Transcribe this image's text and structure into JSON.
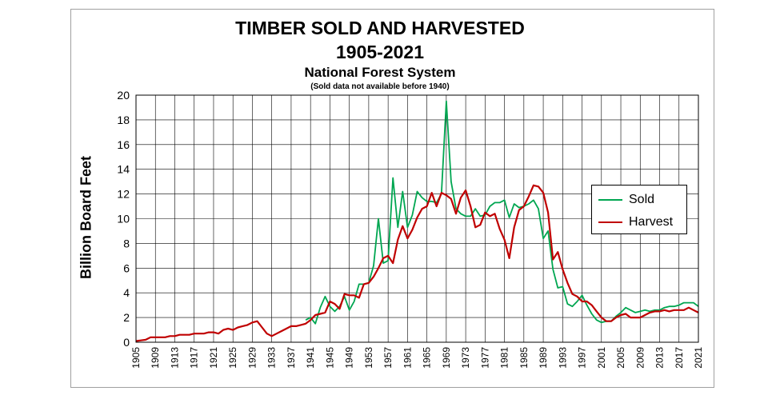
{
  "chart_data": {
    "type": "line",
    "title": "TIMBER SOLD AND HARVESTED",
    "title_line2": "1905-2021",
    "subtitle": "National Forest System",
    "note": "(Sold data not available before 1940)",
    "xlabel": "",
    "ylabel": "Billion Board Feet",
    "xlim": [
      1905,
      2021
    ],
    "ylim": [
      0,
      20
    ],
    "yticks": [
      0,
      2,
      4,
      6,
      8,
      10,
      12,
      14,
      16,
      18,
      20
    ],
    "xticks": [
      1905,
      1909,
      1913,
      1917,
      1921,
      1925,
      1929,
      1933,
      1937,
      1941,
      1945,
      1949,
      1953,
      1957,
      1961,
      1965,
      1969,
      1973,
      1977,
      1981,
      1985,
      1989,
      1993,
      1997,
      2001,
      2005,
      2009,
      2013,
      2017,
      2021
    ],
    "grid": true,
    "legend_position": "right",
    "series": [
      {
        "name": "Sold",
        "color": "#00a651",
        "points": [
          [
            1940,
            1.8
          ],
          [
            1941,
            2.0
          ],
          [
            1942,
            1.5
          ],
          [
            1943,
            2.8
          ],
          [
            1944,
            3.7
          ],
          [
            1945,
            2.9
          ],
          [
            1946,
            2.5
          ],
          [
            1947,
            2.9
          ],
          [
            1948,
            3.7
          ],
          [
            1949,
            2.6
          ],
          [
            1950,
            3.3
          ],
          [
            1951,
            4.7
          ],
          [
            1952,
            4.7
          ],
          [
            1953,
            4.8
          ],
          [
            1954,
            6.2
          ],
          [
            1955,
            10.0
          ],
          [
            1956,
            6.4
          ],
          [
            1957,
            6.6
          ],
          [
            1958,
            13.3
          ],
          [
            1959,
            9.3
          ],
          [
            1960,
            12.2
          ],
          [
            1961,
            9.3
          ],
          [
            1962,
            10.3
          ],
          [
            1963,
            12.2
          ],
          [
            1964,
            11.7
          ],
          [
            1965,
            11.4
          ],
          [
            1966,
            11.4
          ],
          [
            1967,
            11.3
          ],
          [
            1968,
            12.0
          ],
          [
            1969,
            19.5
          ],
          [
            1970,
            13.0
          ],
          [
            1971,
            10.8
          ],
          [
            1972,
            10.4
          ],
          [
            1973,
            10.2
          ],
          [
            1974,
            10.2
          ],
          [
            1975,
            10.8
          ],
          [
            1976,
            10.2
          ],
          [
            1977,
            10.3
          ],
          [
            1978,
            11.0
          ],
          [
            1979,
            11.3
          ],
          [
            1980,
            11.3
          ],
          [
            1981,
            11.5
          ],
          [
            1982,
            10.1
          ],
          [
            1983,
            11.2
          ],
          [
            1984,
            10.9
          ],
          [
            1985,
            11.0
          ],
          [
            1986,
            11.2
          ],
          [
            1987,
            11.5
          ],
          [
            1988,
            10.8
          ],
          [
            1989,
            8.4
          ],
          [
            1990,
            9.0
          ],
          [
            1991,
            5.9
          ],
          [
            1992,
            4.4
          ],
          [
            1993,
            4.5
          ],
          [
            1994,
            3.1
          ],
          [
            1995,
            2.9
          ],
          [
            1996,
            3.3
          ],
          [
            1997,
            3.8
          ],
          [
            1998,
            3.0
          ],
          [
            1999,
            2.3
          ],
          [
            2000,
            1.8
          ],
          [
            2001,
            1.6
          ],
          [
            2002,
            1.7
          ],
          [
            2003,
            1.7
          ],
          [
            2004,
            2.1
          ],
          [
            2005,
            2.4
          ],
          [
            2006,
            2.8
          ],
          [
            2007,
            2.6
          ],
          [
            2008,
            2.4
          ],
          [
            2009,
            2.5
          ],
          [
            2010,
            2.6
          ],
          [
            2011,
            2.5
          ],
          [
            2012,
            2.6
          ],
          [
            2013,
            2.6
          ],
          [
            2014,
            2.8
          ],
          [
            2015,
            2.9
          ],
          [
            2016,
            2.9
          ],
          [
            2017,
            3.0
          ],
          [
            2018,
            3.2
          ],
          [
            2019,
            3.2
          ],
          [
            2020,
            3.2
          ],
          [
            2021,
            2.9
          ]
        ]
      },
      {
        "name": "Harvest",
        "color": "#c00000",
        "points": [
          [
            1905,
            0.1
          ],
          [
            1906,
            0.15
          ],
          [
            1907,
            0.2
          ],
          [
            1908,
            0.4
          ],
          [
            1909,
            0.4
          ],
          [
            1910,
            0.4
          ],
          [
            1911,
            0.4
          ],
          [
            1912,
            0.5
          ],
          [
            1913,
            0.5
          ],
          [
            1914,
            0.6
          ],
          [
            1915,
            0.6
          ],
          [
            1916,
            0.6
          ],
          [
            1917,
            0.7
          ],
          [
            1918,
            0.7
          ],
          [
            1919,
            0.7
          ],
          [
            1920,
            0.8
          ],
          [
            1921,
            0.8
          ],
          [
            1922,
            0.7
          ],
          [
            1923,
            1.0
          ],
          [
            1924,
            1.1
          ],
          [
            1925,
            1.0
          ],
          [
            1926,
            1.2
          ],
          [
            1927,
            1.3
          ],
          [
            1928,
            1.4
          ],
          [
            1929,
            1.6
          ],
          [
            1930,
            1.7
          ],
          [
            1931,
            1.2
          ],
          [
            1932,
            0.7
          ],
          [
            1933,
            0.5
          ],
          [
            1934,
            0.7
          ],
          [
            1935,
            0.9
          ],
          [
            1936,
            1.1
          ],
          [
            1937,
            1.3
          ],
          [
            1938,
            1.3
          ],
          [
            1939,
            1.4
          ],
          [
            1940,
            1.5
          ],
          [
            1941,
            1.8
          ],
          [
            1942,
            2.2
          ],
          [
            1943,
            2.3
          ],
          [
            1944,
            2.4
          ],
          [
            1945,
            3.3
          ],
          [
            1946,
            3.1
          ],
          [
            1947,
            2.7
          ],
          [
            1948,
            3.9
          ],
          [
            1949,
            3.8
          ],
          [
            1950,
            3.8
          ],
          [
            1951,
            3.6
          ],
          [
            1952,
            4.7
          ],
          [
            1953,
            4.8
          ],
          [
            1954,
            5.3
          ],
          [
            1955,
            6.0
          ],
          [
            1956,
            6.8
          ],
          [
            1957,
            7.0
          ],
          [
            1958,
            6.4
          ],
          [
            1959,
            8.3
          ],
          [
            1960,
            9.4
          ],
          [
            1961,
            8.4
          ],
          [
            1962,
            9.1
          ],
          [
            1963,
            10.1
          ],
          [
            1964,
            10.8
          ],
          [
            1965,
            11.0
          ],
          [
            1966,
            12.1
          ],
          [
            1967,
            11.0
          ],
          [
            1968,
            12.1
          ],
          [
            1969,
            11.9
          ],
          [
            1970,
            11.6
          ],
          [
            1971,
            10.4
          ],
          [
            1972,
            11.7
          ],
          [
            1973,
            12.3
          ],
          [
            1974,
            11.0
          ],
          [
            1975,
            9.3
          ],
          [
            1976,
            9.5
          ],
          [
            1977,
            10.5
          ],
          [
            1978,
            10.2
          ],
          [
            1979,
            10.4
          ],
          [
            1980,
            9.2
          ],
          [
            1981,
            8.3
          ],
          [
            1982,
            6.8
          ],
          [
            1983,
            9.3
          ],
          [
            1984,
            10.7
          ],
          [
            1985,
            11.0
          ],
          [
            1986,
            11.8
          ],
          [
            1987,
            12.7
          ],
          [
            1988,
            12.6
          ],
          [
            1989,
            12.1
          ],
          [
            1990,
            10.5
          ],
          [
            1991,
            6.7
          ],
          [
            1992,
            7.3
          ],
          [
            1993,
            5.9
          ],
          [
            1994,
            4.8
          ],
          [
            1995,
            3.9
          ],
          [
            1996,
            3.7
          ],
          [
            1997,
            3.3
          ],
          [
            1998,
            3.3
          ],
          [
            1999,
            3.0
          ],
          [
            2000,
            2.5
          ],
          [
            2001,
            2.0
          ],
          [
            2002,
            1.7
          ],
          [
            2003,
            1.7
          ],
          [
            2004,
            2.0
          ],
          [
            2005,
            2.2
          ],
          [
            2006,
            2.3
          ],
          [
            2007,
            2.0
          ],
          [
            2008,
            2.0
          ],
          [
            2009,
            2.0
          ],
          [
            2010,
            2.2
          ],
          [
            2011,
            2.4
          ],
          [
            2012,
            2.5
          ],
          [
            2013,
            2.5
          ],
          [
            2014,
            2.6
          ],
          [
            2015,
            2.5
          ],
          [
            2016,
            2.6
          ],
          [
            2017,
            2.6
          ],
          [
            2018,
            2.6
          ],
          [
            2019,
            2.8
          ],
          [
            2020,
            2.6
          ],
          [
            2021,
            2.4
          ]
        ]
      }
    ]
  }
}
